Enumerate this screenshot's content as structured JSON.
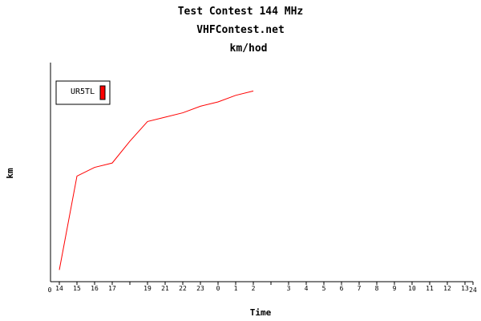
{
  "chart_data": {
    "type": "line",
    "title": "Test Contest 144 MHz",
    "subtitle": "VHFContest.net",
    "unit_title": "km/hod",
    "y_label": "km",
    "x_label": "Time",
    "axis_end_labels": [
      "0",
      "24"
    ],
    "categories": [
      "14",
      "15",
      "16",
      "17",
      null,
      "19",
      "21",
      "22",
      "23",
      "0",
      "1",
      "2",
      null,
      "3",
      "4",
      "5",
      "6",
      "7",
      "8",
      "9",
      "10",
      "11",
      "12",
      "13"
    ],
    "series": [
      {
        "name": "UR5TL",
        "color": "#ff0000",
        "values": [
          5,
          48,
          52,
          54,
          64,
          73,
          75,
          77,
          80,
          82,
          85,
          87,
          null,
          null,
          null,
          null,
          null,
          null,
          null,
          null,
          null,
          null,
          null,
          null
        ]
      }
    ],
    "ylim": [
      0,
      100
    ]
  }
}
